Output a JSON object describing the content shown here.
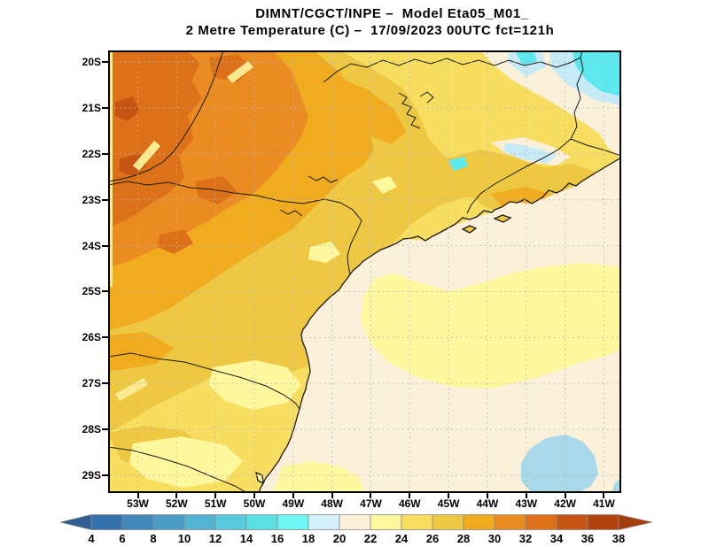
{
  "title": {
    "line1": "DIMNT/CGCT/INPE –  Model Eta05_M01_",
    "line2": "2 Metre Temperature (C) –  17/09/2023 00UTC fct=121h"
  },
  "map": {
    "lat_labels": [
      "20S",
      "21S",
      "22S",
      "23S",
      "24S",
      "25S",
      "26S",
      "27S",
      "28S",
      "29S"
    ],
    "lon_labels": [
      "53W",
      "52W",
      "51W",
      "50W",
      "49W",
      "48W",
      "47W",
      "46W",
      "45W",
      "44W",
      "43W",
      "42W",
      "41W"
    ]
  },
  "colorbar": {
    "tick_labels": [
      "4",
      "6",
      "8",
      "10",
      "12",
      "14",
      "16",
      "18",
      "20",
      "22",
      "24",
      "26",
      "28",
      "30",
      "32",
      "34",
      "36",
      "38"
    ],
    "left_arrow_color": "#2d5f94",
    "right_arrow_color": "#a53c0b",
    "cells": [
      {
        "range": "4-6",
        "color": "#3470ab"
      },
      {
        "range": "6-8",
        "color": "#3f88b7"
      },
      {
        "range": "8-10",
        "color": "#4a9cc5"
      },
      {
        "range": "10-12",
        "color": "#54b5d3"
      },
      {
        "range": "12-14",
        "color": "#59cadd"
      },
      {
        "range": "14-16",
        "color": "#5cdfe2"
      },
      {
        "range": "16-18",
        "color": "#6cf5f2"
      },
      {
        "range": "18-20",
        "color": "#d4f1fb"
      },
      {
        "range": "20-22",
        "color": "#fbf0da"
      },
      {
        "range": "22-24",
        "color": "#fdf79e"
      },
      {
        "range": "24-26",
        "color": "#f8de60"
      },
      {
        "range": "26-28",
        "color": "#eec843"
      },
      {
        "range": "28-30",
        "color": "#f0ab1f"
      },
      {
        "range": "30-32",
        "color": "#ea8c22"
      },
      {
        "range": "32-34",
        "color": "#dd7119"
      },
      {
        "range": "34-36",
        "color": "#c65413"
      },
      {
        "range": "36-38",
        "color": "#b2430e"
      }
    ]
  },
  "palette": {
    "c16_18": "#5ce8ee",
    "c18_20": "#c7ebf6",
    "c20_22": "#fbf0da",
    "c22_24": "#fdf79e",
    "c24_26": "#f8de60",
    "c26_28": "#eec843",
    "c28_30": "#f0ab1f",
    "c30_32": "#ea8c22",
    "c32_34": "#dd7119",
    "c34_36": "#c65413",
    "oceanBlue": "#a8d8ea",
    "streak": "#fcea90"
  },
  "chart_data": {
    "type": "heatmap",
    "title": "DIMNT/CGCT/INPE – Model Eta05_M01_",
    "subtitle": "2 Metre Temperature (C) – 17/09/2023 00UTC fct=121h",
    "variable": "2 metre temperature",
    "units": "C",
    "valid_datetime": "17/09/2023 00UTC",
    "forecast_hour": "121h",
    "lat_ticks": [
      "20S",
      "21S",
      "22S",
      "23S",
      "24S",
      "25S",
      "26S",
      "27S",
      "28S",
      "29S"
    ],
    "lon_ticks": [
      "53W",
      "52W",
      "51W",
      "50W",
      "49W",
      "48W",
      "47W",
      "46W",
      "45W",
      "44W",
      "43W",
      "42W",
      "41W"
    ],
    "colorbar_values_c": [
      4,
      6,
      8,
      10,
      12,
      14,
      16,
      18,
      20,
      22,
      24,
      26,
      28,
      30,
      32,
      34,
      36,
      38
    ],
    "colorbar_colors": [
      "#3470ab",
      "#3f88b7",
      "#4a9cc5",
      "#54b5d3",
      "#59cadd",
      "#5cdfe2",
      "#6cf5f2",
      "#d4f1fb",
      "#fbf0da",
      "#fdf79e",
      "#f8de60",
      "#eec843",
      "#f0ab1f",
      "#ea8c22",
      "#dd7119",
      "#c65413",
      "#b2430e"
    ],
    "legend_position": "bottom",
    "grid": "dotted, 1 degree spacing",
    "regions": [
      {
        "area": "northwest interior (Mato Grosso do Sul / west Sao Paulo)",
        "temp_c": "30-34"
      },
      {
        "area": "far west edge patches",
        "temp_c": "34-36"
      },
      {
        "area": "central Sao Paulo state",
        "temp_c": "26-30"
      },
      {
        "area": "east Sao Paulo / south Minas Gerais / Rio de Janeiro interior",
        "temp_c": "24-28"
      },
      {
        "area": "northeast corner (east Minas Gerais highlands)",
        "temp_c": "16-22"
      },
      {
        "area": "Paraiba valley cool spots",
        "temp_c": "16-20"
      },
      {
        "area": "Parana / Santa Catarina interior",
        "temp_c": "22-28"
      },
      {
        "area": "south coastal land (Santa Catarina / Rio Grande do Sul)",
        "temp_c": "22-26"
      },
      {
        "area": "Atlantic ocean near coast",
        "temp_c": "20-22"
      },
      {
        "area": "Atlantic ocean offshore band",
        "temp_c": "22-24"
      },
      {
        "area": "far offshore southeast blob",
        "temp_c": "18-20"
      }
    ]
  }
}
